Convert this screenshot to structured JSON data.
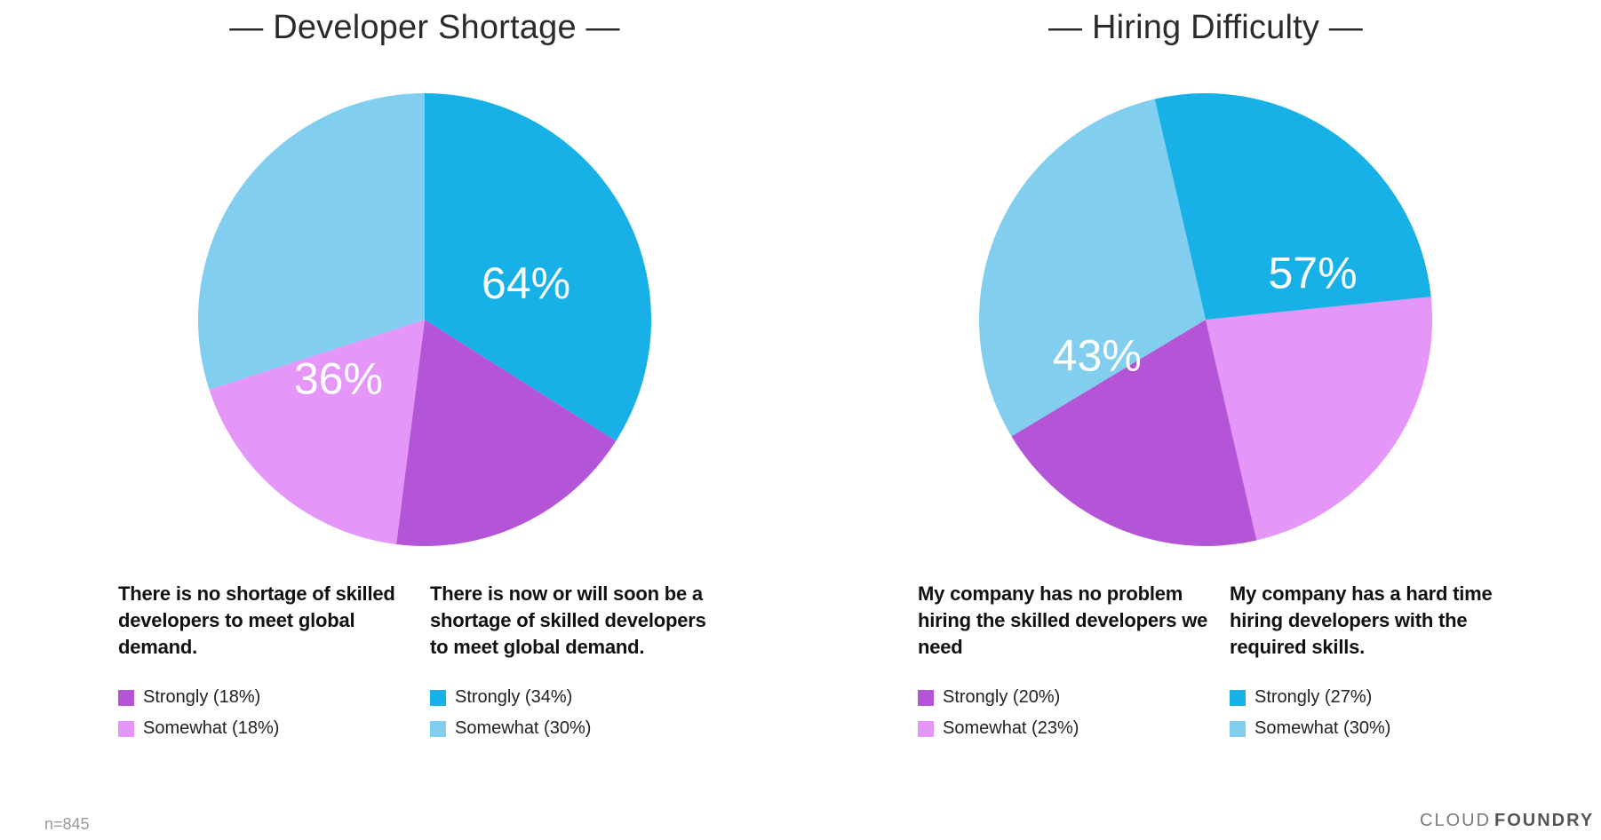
{
  "charts": {
    "left_title": "— Developer Shortage —",
    "right_title": "— Hiring Difficulty —"
  },
  "colors": {
    "strongly_disagree": "#b455d8",
    "somewhat_disagree": "#e497f9",
    "strongly_agree": "#17b0e7",
    "somewhat_agree": "#82ceee"
  },
  "chart_data": [
    {
      "type": "pie",
      "title": "— Developer Shortage —",
      "slices": [
        {
          "label": "Strongly (34%)",
          "value": 34,
          "color": "#17b0e7"
        },
        {
          "label": "Strongly (18%)",
          "value": 18,
          "color": "#b455d8"
        },
        {
          "label": "Somewhat (18%)",
          "value": 18,
          "color": "#e497f9"
        },
        {
          "label": "Somewhat (30%)",
          "value": 30,
          "color": "#82ceee"
        }
      ],
      "group_labels": [
        {
          "text": "64%",
          "value": 64
        },
        {
          "text": "36%",
          "value": 36
        }
      ],
      "groups": [
        {
          "statement": "There is no shortage of skilled developers to meet global demand.",
          "legend": [
            {
              "label": "Strongly (18%)",
              "color": "#b455d8"
            },
            {
              "label": "Somewhat (18%)",
              "color": "#e497f9"
            }
          ]
        },
        {
          "statement": "There is now or will soon be a shortage of skilled developers to meet global demand.",
          "legend": [
            {
              "label": "Strongly (34%)",
              "color": "#17b0e7"
            },
            {
              "label": "Somewhat (30%)",
              "color": "#82ceee"
            }
          ]
        }
      ]
    },
    {
      "type": "pie",
      "title": "— Hiring Difficulty —",
      "slices": [
        {
          "label": "Strongly (27%)",
          "value": 27,
          "color": "#17b0e7"
        },
        {
          "label": "Somewhat (23%)",
          "value": 23,
          "color": "#e497f9"
        },
        {
          "label": "Strongly (20%)",
          "value": 20,
          "color": "#b455d8"
        },
        {
          "label": "Somewhat (30%)",
          "value": 30,
          "color": "#82ceee"
        }
      ],
      "group_labels": [
        {
          "text": "57%",
          "value": 57
        },
        {
          "text": "43%",
          "value": 43
        }
      ],
      "groups": [
        {
          "statement": "My company has no problem hiring the skilled developers we need",
          "legend": [
            {
              "label": "Strongly (20%)",
              "color": "#b455d8"
            },
            {
              "label": "Somewhat (23%)",
              "color": "#e497f9"
            }
          ]
        },
        {
          "statement": "My company has a hard time hiring developers with the required skills.",
          "legend": [
            {
              "label": "Strongly (27%)",
              "color": "#17b0e7"
            },
            {
              "label": "Somewhat (30%)",
              "color": "#82ceee"
            }
          ]
        }
      ]
    }
  ],
  "footer": {
    "sample_size": "n=845",
    "logo_light": "CLOUD",
    "logo_bold": "FOUNDRY"
  }
}
